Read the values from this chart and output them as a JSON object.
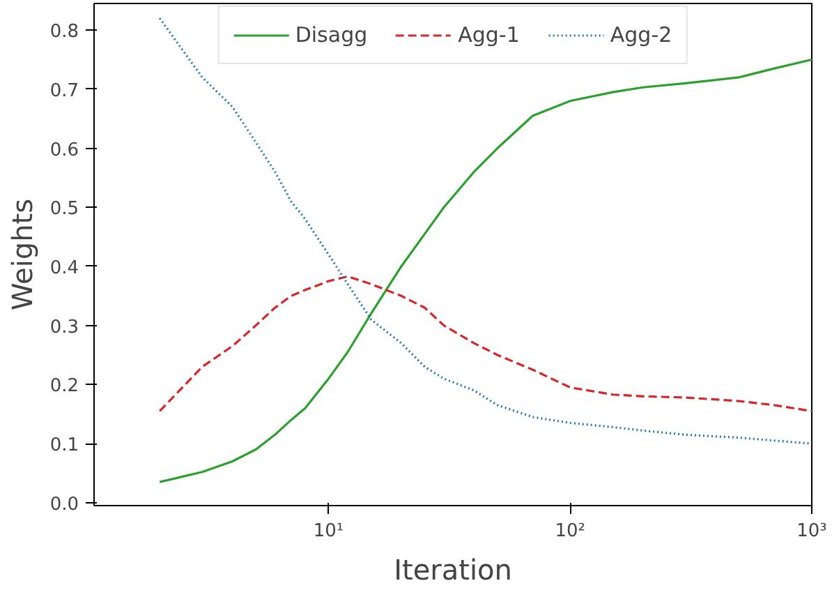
{
  "chart_data": {
    "type": "line",
    "xlabel": "Iteration",
    "ylabel": "Weights",
    "log": "x",
    "xlim": [
      1.07,
      1000
    ],
    "xticks": [
      {
        "value": 10,
        "label": "10¹"
      },
      {
        "value": 100,
        "label": "10²"
      },
      {
        "value": 1000,
        "label": "10³"
      }
    ],
    "ylim": [
      -0.005,
      0.845
    ],
    "yticks": [
      {
        "value": 0,
        "label": "0.0"
      },
      0.1,
      0.2,
      0.3,
      0.4,
      0.5,
      0.6,
      0.7,
      0.8
    ],
    "grid": false,
    "legend": "top",
    "x": [
      2,
      3,
      4,
      5,
      6,
      7,
      8,
      10,
      12,
      15,
      20,
      25,
      30,
      40,
      50,
      70,
      100,
      150,
      200,
      300,
      500,
      700,
      1000
    ],
    "series": [
      {
        "name": "Disagg",
        "color": "#2ca02c",
        "line_style": "solid",
        "values": [
          0.035,
          0.052,
          0.07,
          0.09,
          0.115,
          0.14,
          0.16,
          0.21,
          0.255,
          0.32,
          0.4,
          0.455,
          0.5,
          0.56,
          0.6,
          0.655,
          0.68,
          0.695,
          0.703,
          0.71,
          0.72,
          0.735,
          0.75
        ]
      },
      {
        "name": "Agg-1",
        "color": "#d62728",
        "line_style": "dashed",
        "values": [
          0.155,
          0.23,
          0.265,
          0.3,
          0.33,
          0.35,
          0.36,
          0.375,
          0.383,
          0.37,
          0.35,
          0.33,
          0.3,
          0.27,
          0.25,
          0.225,
          0.195,
          0.183,
          0.18,
          0.178,
          0.172,
          0.165,
          0.155
        ]
      },
      {
        "name": "Agg-2",
        "color": "#1f77b4",
        "line_style": "dotted",
        "values": [
          0.82,
          0.72,
          0.67,
          0.61,
          0.56,
          0.51,
          0.48,
          0.42,
          0.37,
          0.31,
          0.27,
          0.23,
          0.21,
          0.19,
          0.165,
          0.145,
          0.135,
          0.128,
          0.122,
          0.115,
          0.11,
          0.105,
          0.1
        ]
      }
    ]
  }
}
